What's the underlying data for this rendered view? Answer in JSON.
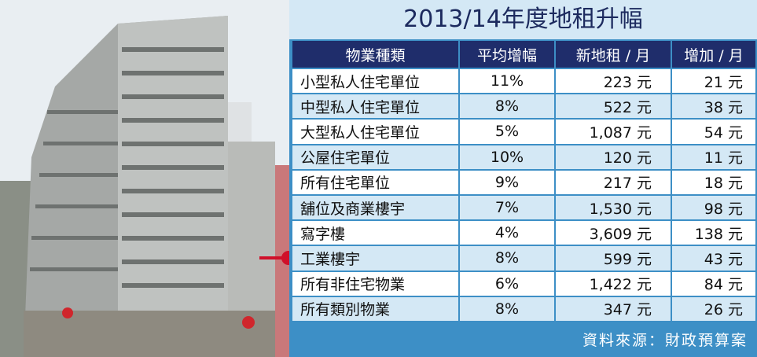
{
  "title": "2013/14年度地租升幅",
  "table": {
    "header": [
      "物業種類",
      "平均增幅",
      "新地租 / 月",
      "增加 / 月"
    ],
    "rows": [
      [
        "小型私人住宅單位",
        "11%",
        "223 元",
        "21 元"
      ],
      [
        "中型私人住宅單位",
        "8%",
        "522 元",
        "38 元"
      ],
      [
        "大型私人住宅單位",
        "5%",
        "1,087 元",
        "54 元"
      ],
      [
        "公屋住宅單位",
        "10%",
        "120 元",
        "11 元"
      ],
      [
        "所有住宅單位",
        "9%",
        "217 元",
        "18 元"
      ],
      [
        "舖位及商業樓宇",
        "7%",
        "1,530 元",
        "98 元"
      ],
      [
        "寫字樓",
        "4%",
        "3,609 元",
        "138 元"
      ],
      [
        "工業樓宇",
        "8%",
        "599 元",
        "43 元"
      ],
      [
        "所有非住宅物業",
        "6%",
        "1,422 元",
        "84 元"
      ],
      [
        "所有類別物業",
        "8%",
        "347 元",
        "26 元"
      ]
    ]
  },
  "source": "資料來源：財政預算案"
}
